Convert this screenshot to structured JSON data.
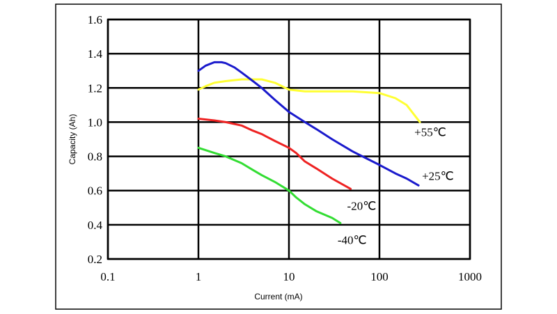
{
  "chart_data": {
    "type": "line",
    "title": "",
    "xlabel": "Current (mA)",
    "ylabel": "Capacity (Ah)",
    "xscale": "log",
    "xlim": [
      0.1,
      1000
    ],
    "ylim": [
      0.2,
      1.6
    ],
    "x_ticks": [
      "0.1",
      "1",
      "10",
      "100",
      "1000"
    ],
    "x_tick_values": [
      0.1,
      1,
      10,
      100,
      1000
    ],
    "y_ticks": [
      "0.2",
      "0.4",
      "0.6",
      "0.8",
      "1.0",
      "1.2",
      "1.4",
      "1.6"
    ],
    "y_tick_values": [
      0.2,
      0.4,
      0.6,
      0.8,
      1.0,
      1.2,
      1.4,
      1.6
    ],
    "grid": true,
    "series": [
      {
        "name": "+55℃",
        "color": "#ffff33",
        "x": [
          1,
          1.2,
          1.5,
          2,
          3,
          4,
          5,
          7,
          10,
          15,
          20,
          30,
          50,
          100,
          150,
          200,
          280
        ],
        "y": [
          1.19,
          1.21,
          1.23,
          1.24,
          1.25,
          1.25,
          1.25,
          1.23,
          1.19,
          1.18,
          1.18,
          1.18,
          1.18,
          1.17,
          1.14,
          1.1,
          1.0
        ]
      },
      {
        "name": "+25℃",
        "color": "#1a1acc",
        "x": [
          1,
          1.2,
          1.5,
          1.8,
          2,
          2.5,
          3,
          4,
          5,
          7,
          10,
          15,
          20,
          30,
          50,
          100,
          150,
          200,
          270
        ],
        "y": [
          1.3,
          1.33,
          1.35,
          1.35,
          1.345,
          1.32,
          1.29,
          1.24,
          1.2,
          1.13,
          1.06,
          1.0,
          0.96,
          0.9,
          0.83,
          0.75,
          0.7,
          0.67,
          0.63
        ]
      },
      {
        "name": "-20℃",
        "color": "#ee2222",
        "x": [
          1,
          1.5,
          2,
          3,
          4,
          5,
          7,
          10,
          12,
          15,
          20,
          30,
          48
        ],
        "y": [
          1.02,
          1.01,
          1.0,
          0.98,
          0.95,
          0.93,
          0.89,
          0.85,
          0.82,
          0.77,
          0.73,
          0.67,
          0.61
        ]
      },
      {
        "name": "-40℃",
        "color": "#33dd33",
        "x": [
          1,
          1.5,
          2,
          3,
          4,
          5,
          7,
          10,
          12,
          15,
          20,
          30,
          37
        ],
        "y": [
          0.85,
          0.82,
          0.8,
          0.76,
          0.72,
          0.69,
          0.65,
          0.6,
          0.56,
          0.52,
          0.48,
          0.44,
          0.41
        ]
      }
    ]
  }
}
